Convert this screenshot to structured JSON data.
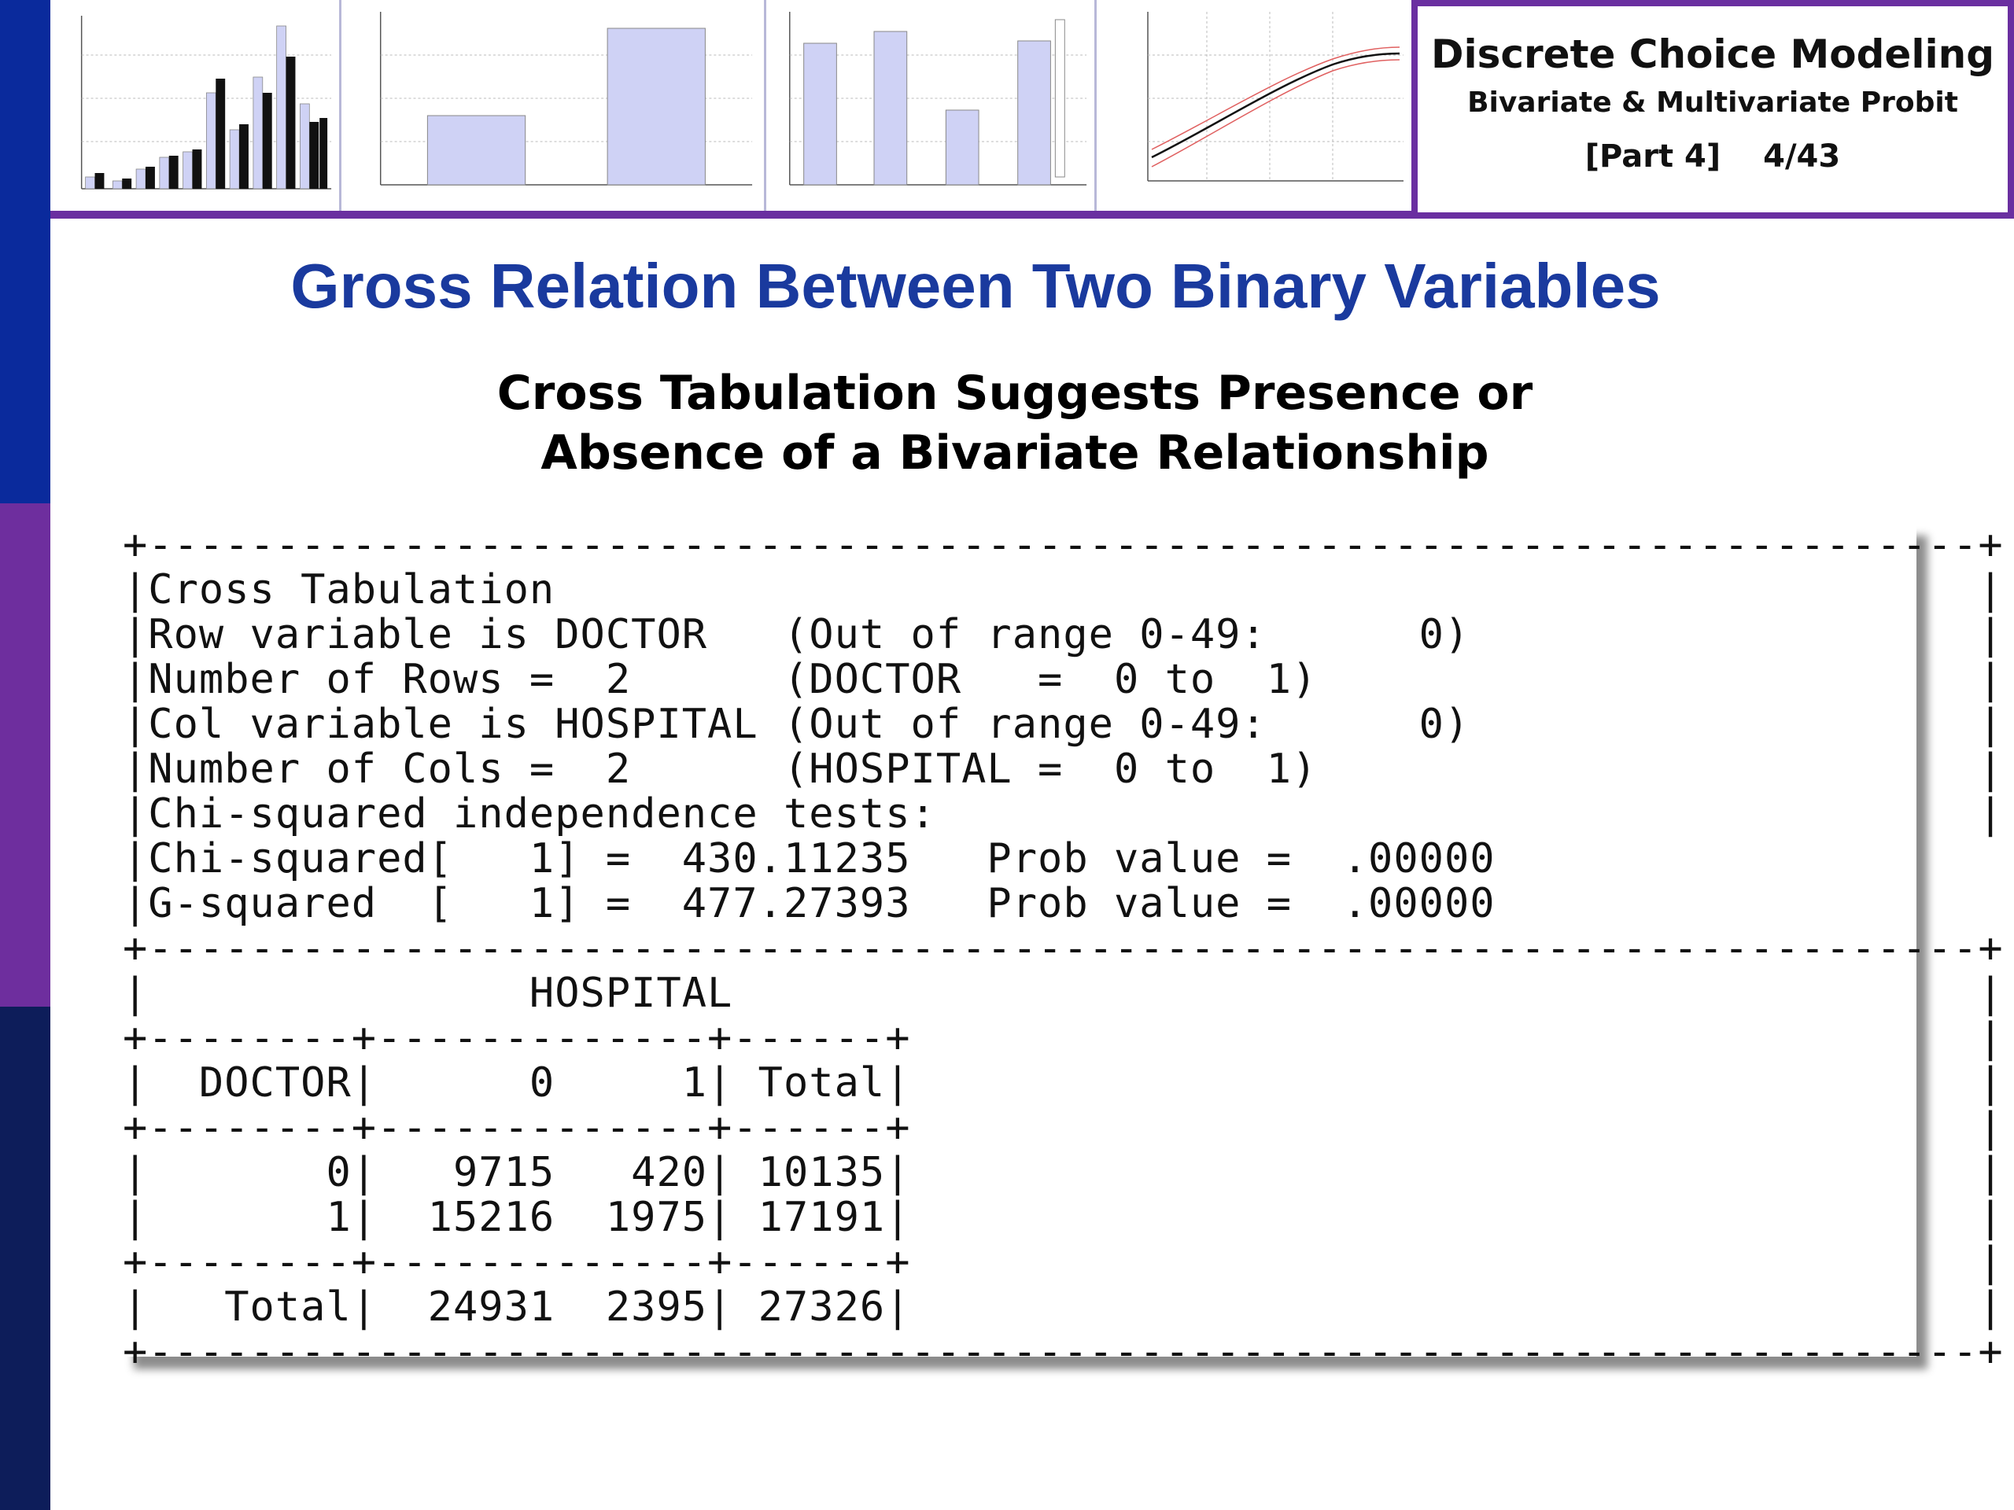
{
  "header": {
    "course_title": "Discrete Choice Modeling",
    "course_subtitle": "Bivariate & Multivariate Probit",
    "part": "[Part 4]",
    "slide_number": "4/43"
  },
  "slide": {
    "title": "Gross Relation Between Two Binary Variables",
    "subtitle_line1": "Cross Tabulation Suggests Presence or",
    "subtitle_line2": "Absence of a Bivariate Relationship"
  },
  "output_lines": [
    "+------------------------------------------------------------------------+",
    "|Cross Tabulation                                                        |",
    "|Row variable is DOCTOR   (Out of range 0-49:      0)                    |",
    "|Number of Rows =  2      (DOCTOR   =  0 to  1)                          |",
    "|Col variable is HOSPITAL (Out of range 0-49:      0)                    |",
    "|Number of Cols =  2      (HOSPITAL =  0 to  1)                          |",
    "|Chi-squared independence tests:                                         |",
    "|Chi-squared[   1] =  430.11235   Prob value =  .00000                    |",
    "|G-squared  [   1] =  477.27393   Prob value =  .00000                    |",
    "+------------------------------------------------------------------------+",
    "|               HOSPITAL                                                 |",
    "+--------+-------------+------+                                          |",
    "|  DOCTOR|      0     1| Total|                                          |",
    "+--------+-------------+------+                                          |",
    "|       0|   9715   420| 10135|                                          |",
    "|       1|  15216  1975| 17191|                                          |",
    "+--------+-------------+------+                                          |",
    "|   Total|  24931  2395| 27326|                                          |",
    "+------------------------------------------------------------------------+"
  ],
  "colors": {
    "sidebar_top": "#0a2a9c",
    "sidebar_middle": "#6e2e9e",
    "sidebar_bottom": "#0d1d5a",
    "title_blue": "#1a3a9e",
    "frame_purple": "#6a2fa0"
  }
}
